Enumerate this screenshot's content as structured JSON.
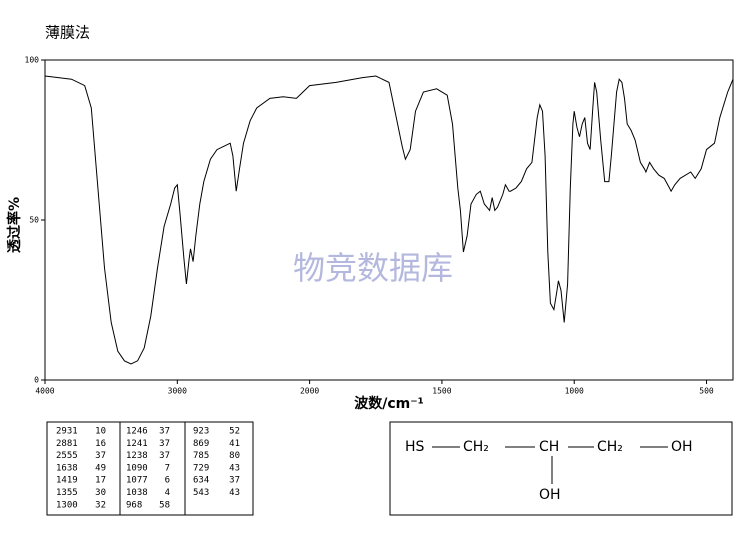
{
  "chart_data": {
    "type": "line",
    "title": "薄膜法",
    "xlabel": "波数/cm⁻¹",
    "ylabel": "透过率%",
    "watermark": "物竞数据库",
    "x": [
      4000,
      3900,
      3800,
      3700,
      3650,
      3600,
      3550,
      3500,
      3450,
      3400,
      3350,
      3300,
      3250,
      3200,
      3150,
      3100,
      3050,
      3020,
      3000,
      2980,
      2950,
      2931,
      2910,
      2900,
      2881,
      2860,
      2830,
      2800,
      2750,
      2700,
      2650,
      2600,
      2580,
      2555,
      2530,
      2500,
      2450,
      2400,
      2300,
      2200,
      2100,
      2050,
      2000,
      1900,
      1800,
      1750,
      1700,
      1680,
      1650,
      1638,
      1620,
      1600,
      1570,
      1520,
      1480,
      1460,
      1440,
      1430,
      1419,
      1405,
      1390,
      1370,
      1355,
      1340,
      1320,
      1310,
      1300,
      1290,
      1270,
      1260,
      1246,
      1241,
      1220,
      1200,
      1180,
      1160,
      1140,
      1130,
      1120,
      1110,
      1100,
      1090,
      1077,
      1065,
      1060,
      1050,
      1038,
      1025,
      1015,
      1005,
      1000,
      990,
      980,
      970,
      960,
      950,
      940,
      930,
      923,
      915,
      900,
      885,
      869,
      860,
      840,
      830,
      820,
      810,
      800,
      785,
      770,
      750,
      735,
      729,
      715,
      700,
      680,
      660,
      640,
      634,
      620,
      600,
      560,
      543,
      520,
      500,
      470,
      450,
      420,
      400
    ],
    "values": [
      95,
      94.5,
      94,
      92,
      85,
      60,
      35,
      18,
      9,
      6,
      5,
      6,
      10,
      20,
      35,
      48,
      55,
      60,
      61,
      52,
      38,
      30,
      38,
      41,
      37,
      45,
      55,
      62,
      69,
      72,
      73,
      74,
      70,
      59,
      66,
      74,
      81,
      85,
      88,
      88.5,
      88,
      90,
      92,
      93,
      94.5,
      95,
      93,
      85,
      73,
      69,
      72,
      84,
      90,
      91,
      89,
      80,
      60,
      53,
      40,
      45,
      55,
      58,
      59,
      55,
      53,
      57,
      53,
      54,
      58,
      61,
      59,
      59,
      60,
      62,
      66,
      68,
      82,
      86,
      84,
      70,
      40,
      24,
      22,
      28,
      31,
      28,
      18,
      30,
      60,
      80,
      84,
      79,
      76,
      80,
      82,
      74,
      72,
      85,
      93,
      90,
      75,
      62,
      62,
      70,
      90,
      94,
      93,
      88,
      80,
      78,
      75,
      68,
      66,
      65,
      68,
      66,
      64,
      63,
      60,
      59,
      61,
      63,
      65,
      63,
      66,
      72,
      74,
      82,
      90,
      94
    ],
    "color": "#000000",
    "xlim": [
      4000,
      400
    ],
    "ylim": [
      0,
      100
    ],
    "xticks": [
      4000,
      3000,
      2000,
      1500,
      1000,
      500
    ],
    "yticks": [
      0,
      50,
      100
    ],
    "xscale": {
      "break": 2000,
      "ratio": 2
    }
  },
  "peak_table": {
    "rows": [
      [
        2931,
        10,
        1246,
        37,
        923,
        52
      ],
      [
        2881,
        16,
        1241,
        37,
        869,
        41
      ],
      [
        2555,
        37,
        1238,
        37,
        785,
        80
      ],
      [
        1638,
        49,
        1090,
        7,
        729,
        43
      ],
      [
        1419,
        17,
        1077,
        6,
        634,
        37
      ],
      [
        1355,
        30,
        1038,
        4,
        543,
        43
      ],
      [
        1300,
        32,
        968,
        58
      ]
    ]
  },
  "structure": {
    "atoms": [
      "HS",
      "CH₂",
      "CH",
      "CH₂",
      "OH",
      "OH"
    ]
  }
}
